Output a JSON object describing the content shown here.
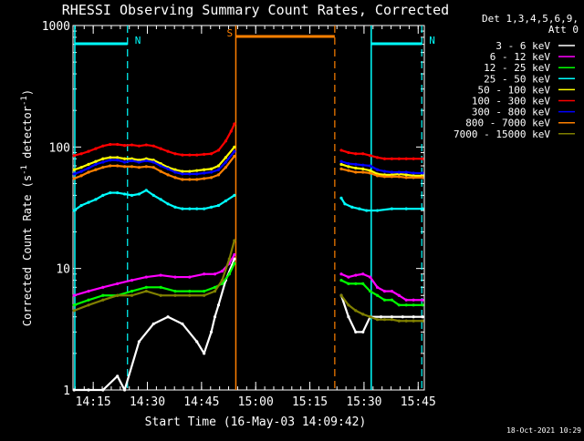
{
  "chart_data": {
    "type": "line",
    "title": "RHESSI Observing Summary Count Rates, Corrected",
    "xlabel": "Start Time (16-May-03 14:09:42)",
    "ylabel": "Corrected Count Rate (s⁻¹ detector⁻¹)",
    "ylabel_parts": {
      "main": "Corrected Count Rate (s",
      "exp1": "-1",
      "mid": " detector",
      "exp2": "-1",
      "end": ")"
    },
    "yscale": "log",
    "xlim_min": [
      9.7,
      107
    ],
    "ylim": [
      1,
      1000
    ],
    "x_ticks_min": [
      {
        "t": 15.3,
        "label": "14:15"
      },
      {
        "t": 30.3,
        "label": "14:30"
      },
      {
        "t": 45.3,
        "label": "14:45"
      },
      {
        "t": 60.3,
        "label": "15:00"
      },
      {
        "t": 75.3,
        "label": "15:15"
      },
      {
        "t": 90.3,
        "label": "15:30"
      },
      {
        "t": 105.3,
        "label": "15:45"
      }
    ],
    "y_ticks": [
      {
        "v": 1,
        "label": "1"
      },
      {
        "v": 10,
        "label": "10"
      },
      {
        "v": 100,
        "label": "100"
      },
      {
        "v": 1000,
        "label": "1000"
      }
    ],
    "legend_header": [
      "Det 1,3,4,5,6,9,",
      "Att 0"
    ],
    "series": [
      {
        "name": "3 - 6 keV",
        "color": "#ffffff",
        "x": [
          10,
          14,
          18,
          22,
          24,
          28,
          32,
          36,
          40,
          44,
          46,
          48,
          49,
          50,
          52,
          54.4,
          84,
          86,
          88,
          90,
          92,
          95,
          98,
          101,
          104,
          106.5
        ],
        "y": [
          1,
          1,
          1,
          1.3,
          1,
          2.5,
          3.5,
          4,
          3.5,
          2.5,
          2,
          3,
          4,
          5,
          8,
          12,
          6,
          4,
          3,
          3,
          4,
          4,
          4,
          4,
          4,
          4
        ]
      },
      {
        "name": "6 - 12 keV",
        "color": "#ff00ff",
        "x": [
          10,
          14,
          18,
          22,
          26,
          30,
          34,
          38,
          42,
          46,
          49,
          51,
          53,
          54.4,
          84,
          86,
          88,
          90,
          92,
          94,
          96,
          98,
          100,
          102,
          104,
          106.5
        ],
        "y": [
          6,
          6.5,
          7,
          7.5,
          8,
          8.5,
          8.8,
          8.5,
          8.5,
          9,
          9,
          9.5,
          11,
          13,
          9,
          8.5,
          8.8,
          9,
          8.5,
          7,
          6.5,
          6.5,
          6,
          5.5,
          5.5,
          5.5
        ]
      },
      {
        "name": "12 - 25 keV",
        "color": "#00ff00",
        "x": [
          10,
          14,
          18,
          22,
          26,
          30,
          34,
          38,
          42,
          46,
          49,
          51,
          53,
          54.4,
          84,
          86,
          88,
          90,
          92,
          94,
          96,
          98,
          100,
          102,
          104,
          106.5
        ],
        "y": [
          5,
          5.5,
          6,
          6,
          6.5,
          7,
          7,
          6.5,
          6.5,
          6.5,
          7,
          7.5,
          9,
          11,
          8,
          7.5,
          7.5,
          7.5,
          6.5,
          6,
          5.5,
          5.5,
          5,
          5,
          5,
          5
        ]
      },
      {
        "name": "25 - 50 keV",
        "color": "#00ffff",
        "x": [
          10,
          12,
          14,
          16,
          18,
          20,
          22,
          24,
          26,
          28,
          30,
          32,
          34,
          36,
          38,
          40,
          42,
          44,
          46,
          48,
          50,
          52,
          54.4,
          84,
          85,
          87,
          89,
          91,
          94,
          98,
          102,
          106.5
        ],
        "y": [
          30,
          33,
          35,
          37,
          40,
          42,
          42,
          41,
          40,
          41,
          44,
          40,
          37,
          34,
          32,
          31,
          31,
          31,
          31,
          32,
          33,
          36,
          40,
          38,
          34,
          32,
          31,
          30,
          30,
          31,
          31,
          31
        ]
      },
      {
        "name": "50 - 100 keV",
        "color": "#ffff00",
        "x": [
          10,
          12,
          14,
          16,
          18,
          20,
          22,
          24,
          26,
          28,
          30,
          32,
          34,
          36,
          38,
          40,
          42,
          44,
          46,
          48,
          50,
          52,
          54.4,
          84,
          86,
          88,
          90,
          92,
          94,
          96,
          98,
          100,
          102,
          104,
          106.5
        ],
        "y": [
          65,
          68,
          72,
          76,
          80,
          82,
          82,
          80,
          80,
          78,
          80,
          78,
          73,
          68,
          65,
          63,
          63,
          64,
          65,
          66,
          70,
          82,
          100,
          72,
          69,
          67,
          66,
          64,
          60,
          59,
          59,
          60,
          59,
          58,
          58
        ]
      },
      {
        "name": "100 - 300 keV",
        "color": "#ff0000",
        "x": [
          10,
          12,
          14,
          16,
          18,
          20,
          22,
          24,
          26,
          28,
          30,
          32,
          34,
          36,
          38,
          40,
          42,
          44,
          46,
          48,
          50,
          52,
          53.5,
          54.4,
          84,
          86,
          88,
          90,
          92,
          94,
          96,
          98,
          100,
          102,
          104,
          106.5
        ],
        "y": [
          85,
          88,
          92,
          97,
          102,
          105,
          105,
          103,
          104,
          102,
          104,
          102,
          97,
          92,
          88,
          86,
          86,
          86,
          87,
          88,
          94,
          112,
          135,
          155,
          94,
          90,
          88,
          88,
          85,
          82,
          80,
          80,
          80,
          80,
          80,
          80
        ]
      },
      {
        "name": "300 - 800 keV",
        "color": "#0000ff",
        "x": [
          10,
          12,
          14,
          16,
          18,
          20,
          22,
          24,
          26,
          28,
          30,
          32,
          34,
          36,
          38,
          40,
          42,
          44,
          46,
          48,
          50,
          52,
          54.4,
          84,
          86,
          88,
          90,
          92,
          94,
          96,
          98,
          100,
          102,
          104,
          106.5
        ],
        "y": [
          60,
          63,
          67,
          72,
          75,
          78,
          78,
          75,
          77,
          75,
          77,
          75,
          70,
          66,
          62,
          60,
          60,
          60,
          61,
          62,
          65,
          75,
          92,
          76,
          73,
          72,
          71,
          70,
          65,
          63,
          62,
          62,
          62,
          61,
          61
        ]
      },
      {
        "name": "800 - 7000 keV",
        "color": "#ff8000",
        "x": [
          10,
          12,
          14,
          16,
          18,
          20,
          22,
          24,
          26,
          28,
          30,
          32,
          34,
          36,
          38,
          40,
          42,
          44,
          46,
          48,
          50,
          52,
          54.4,
          84,
          86,
          88,
          90,
          92,
          94,
          96,
          98,
          100,
          102,
          104,
          106.5
        ],
        "y": [
          55,
          58,
          62,
          65,
          68,
          70,
          70,
          69,
          69,
          68,
          69,
          68,
          63,
          59,
          56,
          54,
          54,
          54,
          55,
          56,
          59,
          68,
          84,
          66,
          64,
          62,
          62,
          61,
          58,
          57,
          57,
          57,
          56,
          56,
          56
        ]
      },
      {
        "name": "7000 - 15000 keV",
        "color": "#808000",
        "x": [
          10,
          14,
          18,
          22,
          26,
          30,
          34,
          38,
          42,
          46,
          49,
          51,
          53,
          54.4,
          84,
          86,
          88,
          90,
          92,
          94,
          96,
          98,
          100,
          102,
          104,
          106.5
        ],
        "y": [
          4.5,
          5,
          5.5,
          6,
          6,
          6.5,
          6,
          6,
          6,
          6,
          6.5,
          8,
          12,
          17,
          6,
          5,
          4.5,
          4.2,
          4,
          3.8,
          3.8,
          3.8,
          3.7,
          3.7,
          3.7,
          3.7
        ]
      }
    ],
    "annotations": [
      {
        "label": "N",
        "color": "#00ffff",
        "x_start": 10.2,
        "x_end": 24.8
      },
      {
        "label": "N",
        "color": "#00ffff",
        "x_start": 92.3,
        "x_end": 106.3
      },
      {
        "label": "S",
        "color": "#ff8000",
        "x_start": 54.8,
        "x_end": 82.2
      }
    ],
    "timestamp": "18-Oct-2021 10:29"
  }
}
